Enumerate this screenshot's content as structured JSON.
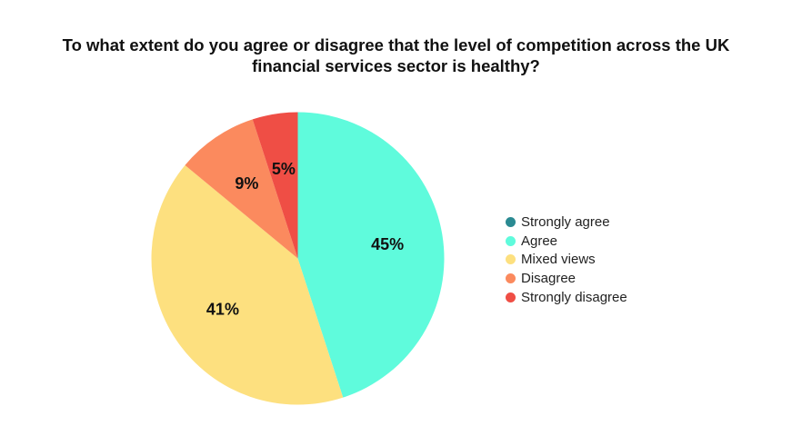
{
  "chart_data": {
    "type": "pie",
    "title_lines": [
      "To what extent do you agree or disagree that the level of competition across the UK",
      "financial services sector is healthy?"
    ],
    "slices": [
      {
        "name": "Strongly agree",
        "value": 0,
        "label": "",
        "color": "#2a8a92"
      },
      {
        "name": "Agree",
        "value": 45,
        "label": "45%",
        "color": "#5ffbdc"
      },
      {
        "name": "Mixed views",
        "value": 41,
        "label": "41%",
        "color": "#fde07f"
      },
      {
        "name": "Disagree",
        "value": 9,
        "label": "9%",
        "color": "#fb8a5e"
      },
      {
        "name": "Strongly disagree",
        "value": 5,
        "label": "5%",
        "color": "#ef4e45"
      }
    ],
    "start_direction": "top",
    "clockwise": true,
    "legend_position": "right"
  }
}
